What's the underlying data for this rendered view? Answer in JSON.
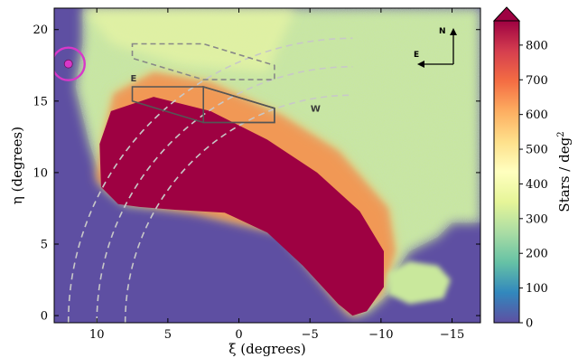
{
  "chart_data": {
    "type": "heatmap",
    "xlabel": "ξ (degrees)",
    "ylabel": "η (degrees)",
    "xlim": [
      13,
      -17
    ],
    "ylim": [
      -0.5,
      21.5
    ],
    "x_ticks": [
      10,
      5,
      0,
      -5,
      -10,
      -15
    ],
    "x_tick_labels": [
      "10",
      "5",
      "0",
      "−5",
      "−10",
      "−15"
    ],
    "y_ticks": [
      0,
      5,
      10,
      15,
      20
    ],
    "y_tick_labels": [
      "0",
      "5",
      "10",
      "15",
      "20"
    ],
    "colorbar": {
      "label": "Stars / deg",
      "label_sup": "2",
      "min": 0,
      "max": 870,
      "ticks": [
        0,
        100,
        200,
        300,
        400,
        500,
        600,
        700,
        800
      ],
      "tick_labels": [
        "0",
        "100",
        "200",
        "300",
        "400",
        "500",
        "600",
        "700",
        "800"
      ],
      "extend": "max",
      "colormap": "Spectral_r"
    },
    "arcs": {
      "center": [
        -8,
        -0.5
      ],
      "radii": [
        16,
        18,
        20
      ],
      "style": "dashed"
    },
    "regions": [
      {
        "label": "E",
        "style": "solid",
        "vertices": [
          [
            7.5,
            16
          ],
          [
            2.5,
            16
          ],
          [
            -2.5,
            14.5
          ],
          [
            -2.5,
            13.5
          ],
          [
            2.5,
            13.5
          ],
          [
            7.5,
            15
          ]
        ]
      },
      {
        "label": "W",
        "style": "solid",
        "vertices": [
          [
            2.5,
            16
          ],
          [
            -2.5,
            14.5
          ],
          [
            -2.5,
            13.5
          ],
          [
            2.5,
            13.5
          ]
        ]
      },
      {
        "label": "",
        "style": "dashed",
        "vertices": [
          [
            7.5,
            19
          ],
          [
            2.5,
            19
          ],
          [
            -2.5,
            17.5
          ],
          [
            -2.5,
            16.5
          ],
          [
            2.5,
            16.5
          ],
          [
            7.5,
            18
          ]
        ]
      }
    ],
    "marker": {
      "x": 12,
      "y": 17.6,
      "color": "#d838c8"
    },
    "compass": {
      "north": "N",
      "east": "E"
    }
  }
}
